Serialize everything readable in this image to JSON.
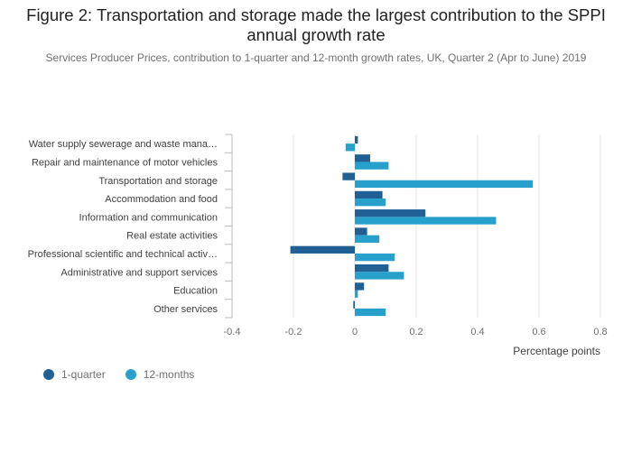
{
  "title": "Figure 2: Transportation and storage made the largest contribution to the SPPI annual growth rate",
  "subtitle": "Services Producer Prices, contribution to 1-quarter and 12-month growth rates, UK, Quarter 2 (Apr to June) 2019",
  "colors": {
    "q1": "#206095",
    "m12": "#27a0cc",
    "grid": "#e6e6e6",
    "axis": "#bcbcbc"
  },
  "chart_data": {
    "type": "bar",
    "orientation": "horizontal",
    "categories": [
      "Water supply sewerage and waste mana…",
      "Repair and maintenance of motor vehicles",
      "Transportation and storage",
      "Accommodation and food",
      "Information and communication",
      "Real estate activities",
      "Professional scientific and technical activ…",
      "Administrative and support services",
      "Education",
      "Other services"
    ],
    "series": [
      {
        "name": "1-quarter",
        "values": [
          0.01,
          0.05,
          -0.04,
          0.09,
          0.23,
          0.04,
          -0.21,
          0.11,
          0.03,
          -0.005
        ]
      },
      {
        "name": "12-months",
        "values": [
          -0.03,
          0.11,
          0.58,
          0.1,
          0.46,
          0.08,
          0.13,
          0.16,
          0.01,
          0.1
        ]
      }
    ],
    "xlim": [
      -0.4,
      0.8
    ],
    "xticks": [
      "-0.4",
      "-0.2",
      "0",
      "0.2",
      "0.4",
      "0.6",
      "0.8"
    ],
    "xlabel": "Percentage points",
    "grid": true,
    "legend_position": "bottom-left"
  },
  "legend": {
    "q1_label": "1-quarter",
    "m12_label": "12-months"
  }
}
